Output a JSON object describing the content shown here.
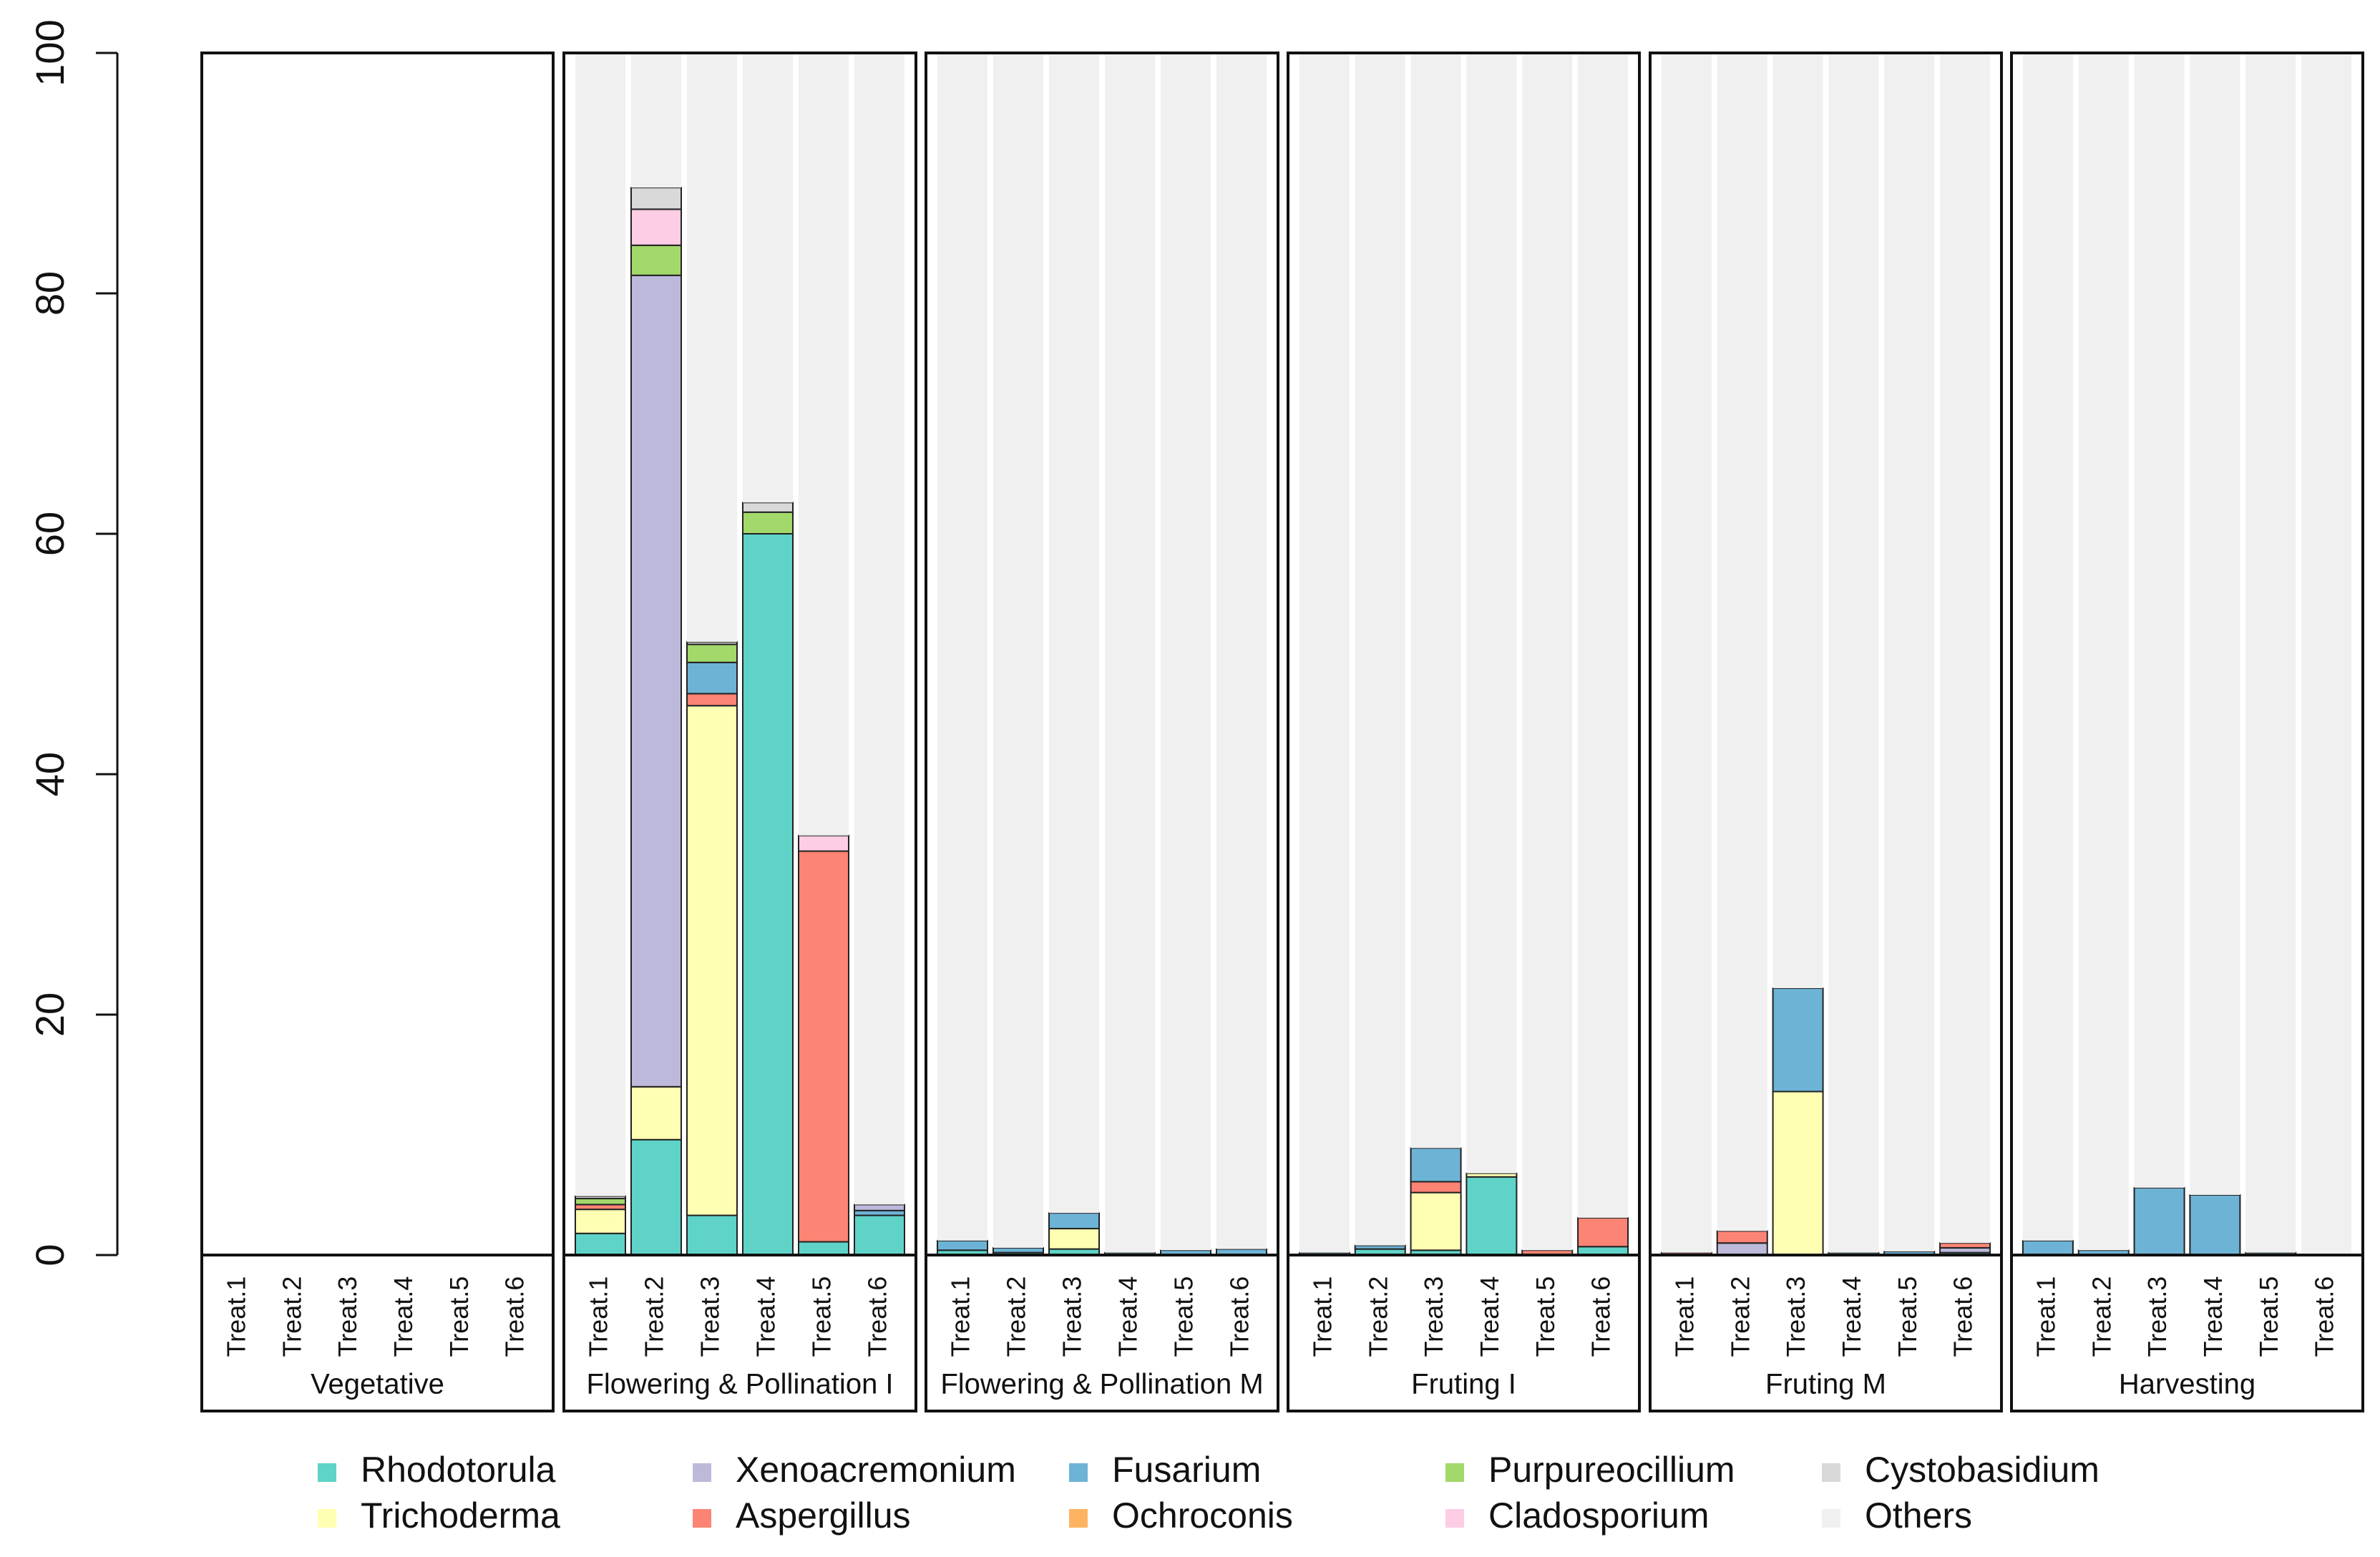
{
  "chart_data": {
    "type": "bar",
    "stacked": true,
    "ylim": [
      0,
      100
    ],
    "yticks": [
      0,
      20,
      40,
      60,
      80,
      100
    ],
    "ytick_labels": [
      "0",
      "20",
      "40",
      "60",
      "80",
      "100"
    ],
    "panels": [
      {
        "label": "Vegetative",
        "treatments": [
          "Treat.1",
          "Treat.2",
          "Treat.3",
          "Treat.4",
          "Treat.5",
          "Treat.6"
        ],
        "stacks": [
          [],
          [],
          [],
          [],
          [],
          []
        ]
      },
      {
        "label": "Flowering & Pollination I",
        "treatments": [
          "Treat.1",
          "Treat.2",
          "Treat.3",
          "Treat.4",
          "Treat.5",
          "Treat.6"
        ],
        "stacks": [
          [
            [
              "Rhodotorula",
              1.8
            ],
            [
              "Trichoderma",
              2.0
            ],
            [
              "Aspergillus",
              0.4
            ],
            [
              "Purpureocillium",
              0.5
            ],
            [
              "Cystobasidium",
              0.2
            ],
            [
              "Others",
              95.1
            ]
          ],
          [
            [
              "Rhodotorula",
              9.6
            ],
            [
              "Trichoderma",
              4.4
            ],
            [
              "Xenoacremonium",
              67.5
            ],
            [
              "Purpureocillium",
              2.5
            ],
            [
              "Cladosporium",
              3.0
            ],
            [
              "Cystobasidium",
              1.8
            ],
            [
              "Others",
              11.2
            ]
          ],
          [
            [
              "Rhodotorula",
              3.3
            ],
            [
              "Trichoderma",
              42.4
            ],
            [
              "Aspergillus",
              1.0
            ],
            [
              "Fusarium",
              2.6
            ],
            [
              "Purpureocillium",
              1.5
            ],
            [
              "Cystobasidium",
              0.2
            ],
            [
              "Others",
              49.0
            ]
          ],
          [
            [
              "Rhodotorula",
              60.0
            ],
            [
              "Purpureocillium",
              1.8
            ],
            [
              "Cystobasidium",
              0.8
            ],
            [
              "Others",
              37.4
            ]
          ],
          [
            [
              "Rhodotorula",
              1.1
            ],
            [
              "Aspergillus",
              32.5
            ],
            [
              "Cladosporium",
              1.3
            ],
            [
              "Others",
              65.1
            ]
          ],
          [
            [
              "Rhodotorula",
              3.3
            ],
            [
              "Fusarium",
              0.4
            ],
            [
              "Xenoacremonium",
              0.5
            ],
            [
              "Others",
              95.8
            ]
          ]
        ]
      },
      {
        "label": "Flowering & Pollination M",
        "treatments": [
          "Treat.1",
          "Treat.2",
          "Treat.3",
          "Treat.4",
          "Treat.5",
          "Treat.6"
        ],
        "stacks": [
          [
            [
              "Rhodotorula",
              0.4
            ],
            [
              "Fusarium",
              0.8
            ],
            [
              "Others",
              98.8
            ]
          ],
          [
            [
              "Rhodotorula",
              0.2
            ],
            [
              "Fusarium",
              0.4
            ],
            [
              "Others",
              99.4
            ]
          ],
          [
            [
              "Rhodotorula",
              0.5
            ],
            [
              "Trichoderma",
              1.7
            ],
            [
              "Fusarium",
              1.3
            ],
            [
              "Others",
              96.5
            ]
          ],
          [
            [
              "Fusarium",
              0.2
            ],
            [
              "Others",
              99.8
            ]
          ],
          [
            [
              "Fusarium",
              0.4
            ],
            [
              "Others",
              99.6
            ]
          ],
          [
            [
              "Fusarium",
              0.5
            ],
            [
              "Others",
              99.5
            ]
          ]
        ]
      },
      {
        "label": "Fruting I",
        "treatments": [
          "Treat.1",
          "Treat.2",
          "Treat.3",
          "Treat.4",
          "Treat.5",
          "Treat.6"
        ],
        "stacks": [
          [
            [
              "Fusarium",
              0.2
            ],
            [
              "Others",
              99.8
            ]
          ],
          [
            [
              "Rhodotorula",
              0.5
            ],
            [
              "Fusarium",
              0.3
            ],
            [
              "Others",
              99.2
            ]
          ],
          [
            [
              "Rhodotorula",
              0.4
            ],
            [
              "Trichoderma",
              4.8
            ],
            [
              "Aspergillus",
              0.9
            ],
            [
              "Fusarium",
              2.8
            ],
            [
              "Others",
              91.1
            ]
          ],
          [
            [
              "Rhodotorula",
              6.5
            ],
            [
              "Trichoderma",
              0.3
            ],
            [
              "Others",
              93.2
            ]
          ],
          [
            [
              "Aspergillus",
              0.4
            ],
            [
              "Others",
              99.6
            ]
          ],
          [
            [
              "Rhodotorula",
              0.7
            ],
            [
              "Aspergillus",
              2.4
            ],
            [
              "Others",
              96.9
            ]
          ]
        ]
      },
      {
        "label": "Fruting M",
        "treatments": [
          "Treat.1",
          "Treat.2",
          "Treat.3",
          "Treat.4",
          "Treat.5",
          "Treat.6"
        ],
        "stacks": [
          [
            [
              "Aspergillus",
              0.2
            ],
            [
              "Others",
              99.8
            ]
          ],
          [
            [
              "Xenoacremonium",
              1.0
            ],
            [
              "Aspergillus",
              1.0
            ],
            [
              "Others",
              98.0
            ]
          ],
          [
            [
              "Trichoderma",
              13.6
            ],
            [
              "Fusarium",
              8.6
            ],
            [
              "Others",
              77.8
            ]
          ],
          [
            [
              "Fusarium",
              0.2
            ],
            [
              "Others",
              99.8
            ]
          ],
          [
            [
              "Fusarium",
              0.3
            ],
            [
              "Others",
              99.7
            ]
          ],
          [
            [
              "Rhodotorula",
              0.2
            ],
            [
              "Xenoacremonium",
              0.4
            ],
            [
              "Aspergillus",
              0.4
            ],
            [
              "Others",
              99.0
            ]
          ]
        ]
      },
      {
        "label": "Harvesting",
        "treatments": [
          "Treat.1",
          "Treat.2",
          "Treat.3",
          "Treat.4",
          "Treat.5",
          "Treat.6"
        ],
        "stacks": [
          [
            [
              "Fusarium",
              1.2
            ],
            [
              "Others",
              98.8
            ]
          ],
          [
            [
              "Fusarium",
              0.4
            ],
            [
              "Others",
              99.6
            ]
          ],
          [
            [
              "Fusarium",
              5.6
            ],
            [
              "Others",
              94.4
            ]
          ],
          [
            [
              "Fusarium",
              5.0
            ],
            [
              "Others",
              95.0
            ]
          ],
          [
            [
              "Fusarium",
              0.2
            ],
            [
              "Others",
              99.8
            ]
          ],
          [
            [
              "Others",
              100.0
            ]
          ]
        ]
      }
    ],
    "legend": {
      "position": "bottom",
      "entries": [
        {
          "name": "Rhodotorula",
          "color": "#5fd3c7"
        },
        {
          "name": "Xenoacremonium",
          "color": "#bcb9db"
        },
        {
          "name": "Fusarium",
          "color": "#6db3d6"
        },
        {
          "name": "Purpureocillium",
          "color": "#a3d86a"
        },
        {
          "name": "Cystobasidium",
          "color": "#d9d9d9"
        },
        {
          "name": "Trichoderma",
          "color": "#ffffb3"
        },
        {
          "name": "Aspergillus",
          "color": "#fc8474"
        },
        {
          "name": "Ochroconis",
          "color": "#fdb462"
        },
        {
          "name": "Cladosporium",
          "color": "#fccde5"
        },
        {
          "name": "Others",
          "color": "#f0f0f0"
        }
      ]
    }
  }
}
